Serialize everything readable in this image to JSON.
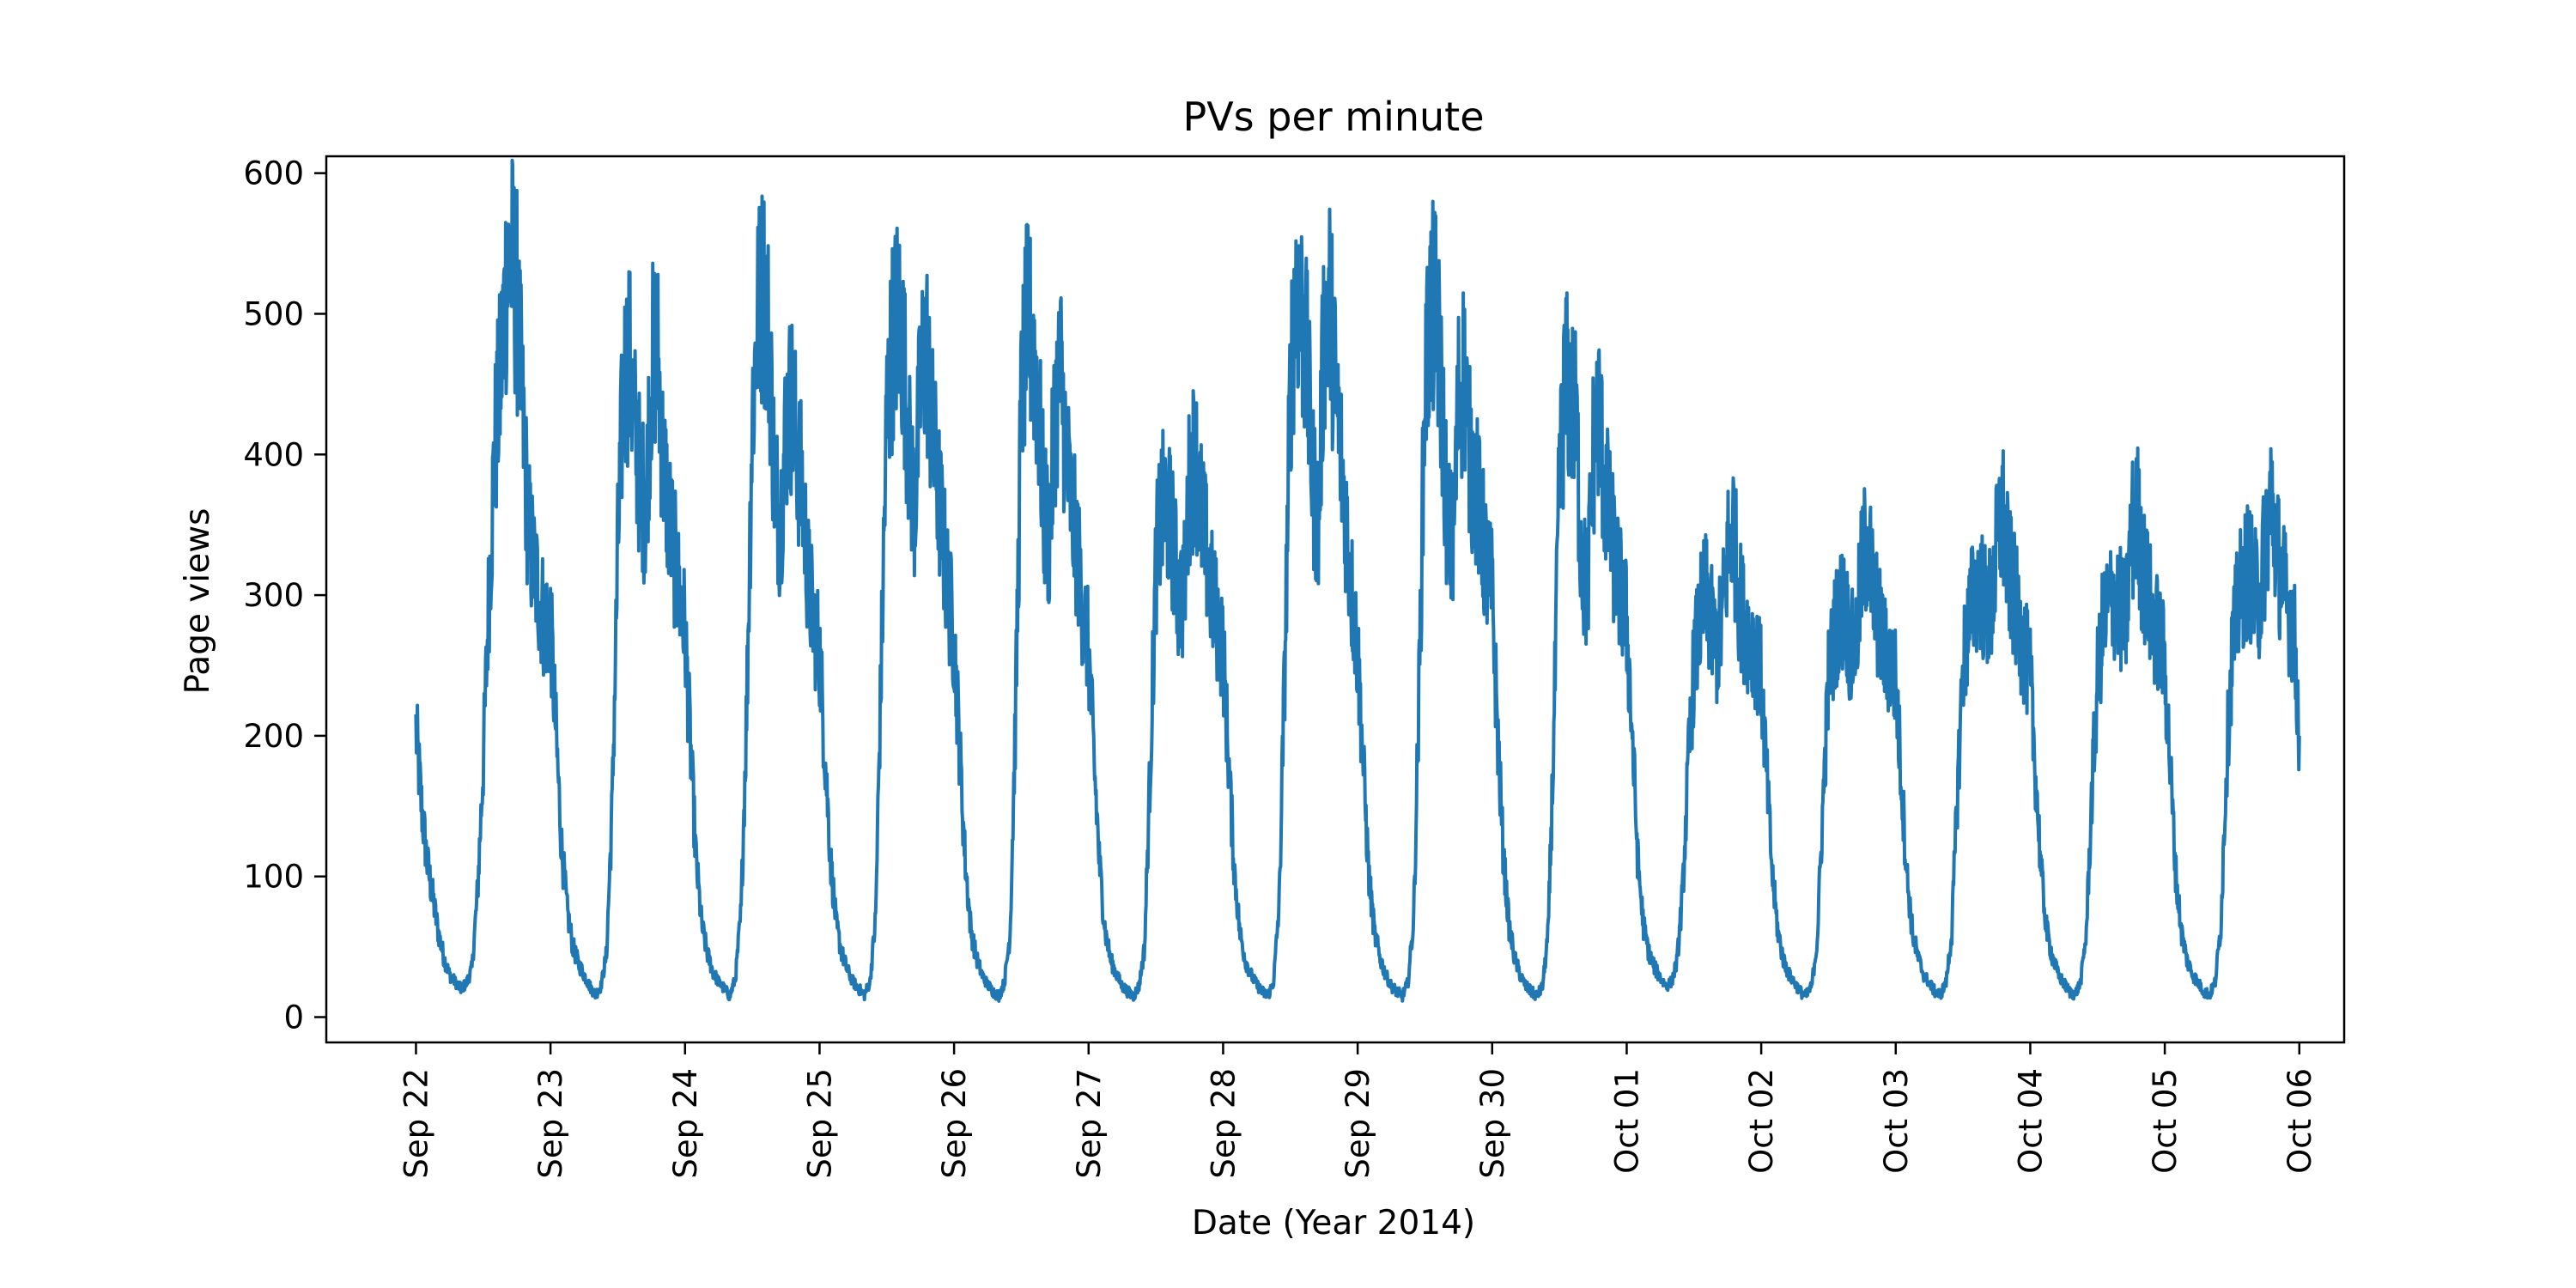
{
  "chart_data": {
    "type": "line",
    "title": "PVs per minute",
    "xlabel": "Date (Year 2014)",
    "ylabel": "Page views",
    "x_ticks": [
      "Sep 22",
      "Sep 23",
      "Sep 24",
      "Sep 25",
      "Sep 26",
      "Sep 27",
      "Sep 28",
      "Sep 29",
      "Sep 30",
      "Oct 01",
      "Oct 02",
      "Oct 03",
      "Oct 04",
      "Oct 05",
      "Oct 06"
    ],
    "x_tick_dates": [
      "2014-09-22",
      "2014-09-23",
      "2014-09-24",
      "2014-09-25",
      "2014-09-26",
      "2014-09-27",
      "2014-09-28",
      "2014-09-29",
      "2014-09-30",
      "2014-10-01",
      "2014-10-02",
      "2014-10-03",
      "2014-10-04",
      "2014-10-05",
      "2014-10-06"
    ],
    "y_ticks": [
      0,
      100,
      200,
      300,
      400,
      500,
      600
    ],
    "xlim": [
      "2014-09-21T08:00",
      "2014-10-06T08:00"
    ],
    "ylim": [
      -18,
      612
    ],
    "grid": false,
    "legend": "none",
    "series": [
      {
        "color": "#1f77b4",
        "x_start": "2014-09-22T00:00",
        "x_step_hours": 1,
        "values": [
          205,
          150,
          110,
          85,
          60,
          42,
          30,
          25,
          20,
          24,
          35,
          90,
          180,
          300,
          400,
          450,
          520,
          540,
          510,
          430,
          350,
          320,
          300,
          280,
          280,
          200,
          120,
          75,
          50,
          38,
          30,
          22,
          16,
          22,
          45,
          150,
          330,
          450,
          470,
          420,
          380,
          360,
          460,
          480,
          400,
          360,
          330,
          300,
          275,
          190,
          110,
          65,
          45,
          32,
          25,
          20,
          15,
          28,
          75,
          220,
          430,
          500,
          520,
          480,
          380,
          350,
          420,
          440,
          400,
          370,
          310,
          280,
          260,
          185,
          110,
          65,
          45,
          33,
          25,
          20,
          16,
          25,
          70,
          250,
          430,
          480,
          500,
          470,
          400,
          360,
          450,
          480,
          420,
          380,
          340,
          300,
          270,
          190,
          110,
          62,
          42,
          30,
          23,
          18,
          15,
          25,
          60,
          220,
          440,
          490,
          480,
          440,
          360,
          340,
          430,
          460,
          400,
          360,
          330,
          290,
          260,
          180,
          105,
          60,
          40,
          30,
          22,
          18,
          15,
          22,
          50,
          180,
          320,
          360,
          360,
          340,
          300,
          300,
          380,
          400,
          360,
          330,
          300,
          280,
          260,
          180,
          105,
          60,
          40,
          30,
          23,
          18,
          15,
          25,
          80,
          250,
          450,
          520,
          500,
          460,
          380,
          350,
          490,
          510,
          450,
          400,
          350,
          300,
          260,
          180,
          100,
          60,
          42,
          30,
          22,
          18,
          15,
          25,
          70,
          240,
          450,
          500,
          500,
          440,
          350,
          330,
          440,
          460,
          400,
          380,
          350,
          320,
          300,
          200,
          115,
          65,
          42,
          30,
          22,
          18,
          15,
          22,
          60,
          200,
          380,
          450,
          440,
          420,
          320,
          300,
          400,
          430,
          380,
          350,
          320,
          300,
          280,
          200,
          110,
          65,
          45,
          35,
          28,
          22,
          25,
          40,
          90,
          180,
          250,
          280,
          300,
          280,
          260,
          280,
          330,
          350,
          300,
          280,
          270,
          260,
          240,
          170,
          100,
          60,
          40,
          30,
          24,
          18,
          15,
          22,
          55,
          150,
          240,
          270,
          290,
          290,
          260,
          270,
          320,
          340,
          300,
          280,
          260,
          250,
          240,
          170,
          100,
          60,
          42,
          30,
          24,
          18,
          16,
          25,
          60,
          160,
          250,
          280,
          300,
          310,
          290,
          290,
          330,
          360,
          320,
          300,
          280,
          260,
          240,
          170,
          100,
          60,
          42,
          30,
          24,
          18,
          16,
          25,
          60,
          160,
          240,
          280,
          290,
          300,
          290,
          280,
          340,
          360,
          320,
          300,
          280,
          270,
          250,
          175,
          100,
          60,
          40,
          30,
          24,
          18,
          16,
          25,
          65,
          180,
          260,
          290,
          310,
          320,
          300,
          300,
          340,
          370,
          330,
          310,
          290,
          280,
          200
        ]
      }
    ]
  }
}
